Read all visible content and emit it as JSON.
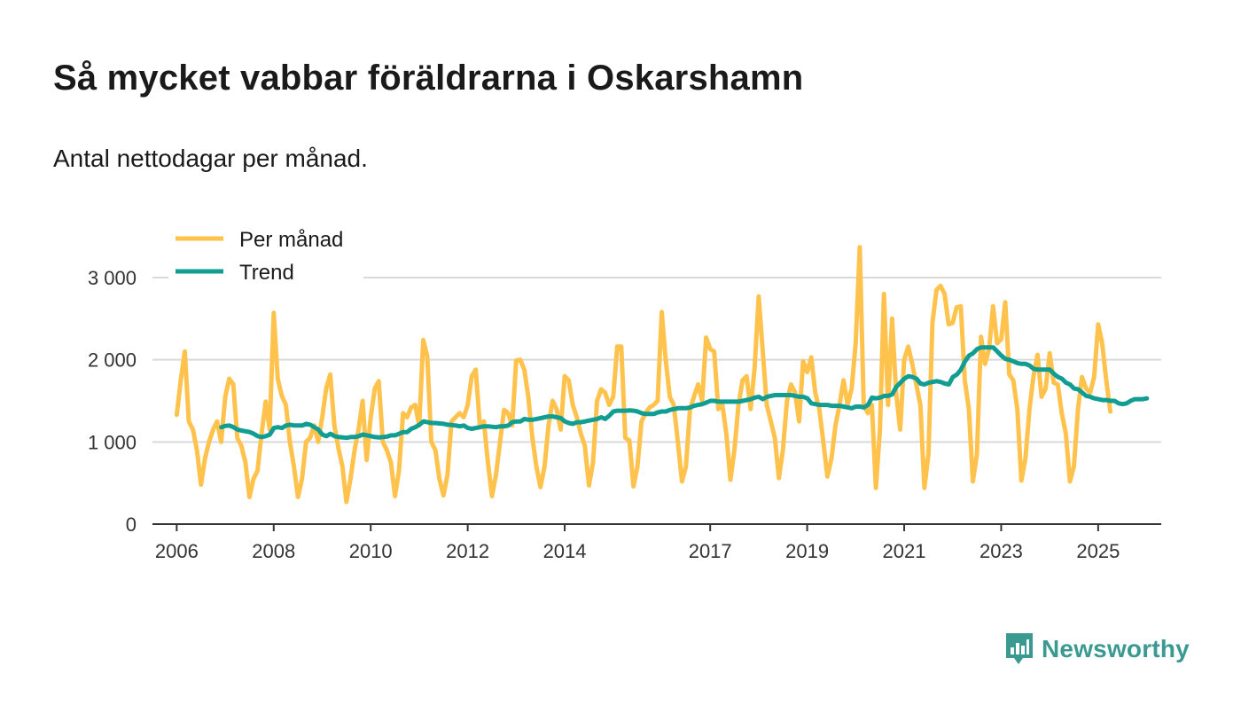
{
  "header": {
    "title": "Så mycket vabbar föräldrarna i Oskarshamn",
    "subtitle": "Antal nettodagar per månad."
  },
  "brand": {
    "name": "Newsworthy",
    "color": "#3a9a92",
    "icon": "newsworthy-logo-icon"
  },
  "colors": {
    "monthly": "#ffc34d",
    "trend": "#119d91",
    "grid": "#d9d9d9",
    "axis": "#333333"
  },
  "chart_data": {
    "type": "line",
    "title": "Så mycket vabbar föräldrarna i Oskarshamn",
    "subtitle": "Antal nettodagar per månad.",
    "xlabel": "",
    "ylabel": "",
    "xlim": [
      2005.5,
      2026.3
    ],
    "ylim": [
      0,
      3000
    ],
    "x_ticks": [
      {
        "value": 2006,
        "label": "2006"
      },
      {
        "value": 2008,
        "label": "2008"
      },
      {
        "value": 2010,
        "label": "2010"
      },
      {
        "value": 2012,
        "label": "2012"
      },
      {
        "value": 2014,
        "label": "2014"
      },
      {
        "value": 2017,
        "label": "2017"
      },
      {
        "value": 2019,
        "label": "2019"
      },
      {
        "value": 2021,
        "label": "2021"
      },
      {
        "value": 2023,
        "label": "2023"
      },
      {
        "value": 2025,
        "label": "2025"
      }
    ],
    "y_ticks": [
      {
        "value": 0,
        "label": "0"
      },
      {
        "value": 1000,
        "label": "1 000"
      },
      {
        "value": 2000,
        "label": "2 000"
      },
      {
        "value": 3000,
        "label": "3 000"
      }
    ],
    "grid": true,
    "legend_position": "top-left",
    "series": [
      {
        "name": "Per månad",
        "start": 2006.0,
        "step": 0.0833333,
        "values": [
          1330,
          1750,
          2100,
          1250,
          1150,
          900,
          480,
          800,
          1000,
          1150,
          1250,
          1000,
          1550,
          1770,
          1700,
          1050,
          950,
          750,
          330,
          550,
          650,
          1100,
          1490,
          1150,
          2570,
          1770,
          1560,
          1450,
          1000,
          700,
          330,
          550,
          1000,
          1050,
          1200,
          1000,
          1300,
          1650,
          1820,
          1200,
          930,
          700,
          270,
          550,
          900,
          1150,
          1500,
          780,
          1300,
          1650,
          1740,
          1000,
          900,
          750,
          340,
          650,
          1350,
          1300,
          1420,
          1450,
          1200,
          2240,
          2040,
          1000,
          900,
          550,
          350,
          600,
          1250,
          1300,
          1350,
          1300,
          1450,
          1800,
          1880,
          1200,
          1250,
          750,
          340,
          600,
          1000,
          1390,
          1350,
          1200,
          1990,
          2000,
          1880,
          1550,
          1050,
          700,
          450,
          700,
          1200,
          1500,
          1400,
          1150,
          1800,
          1750,
          1450,
          1300,
          1100,
          950,
          470,
          750,
          1500,
          1640,
          1600,
          1450,
          1550,
          2160,
          2160,
          1050,
          1020,
          460,
          700,
          1250,
          1350,
          1420,
          1450,
          1500,
          2580,
          2000,
          1550,
          1450,
          1000,
          520,
          700,
          1400,
          1550,
          1700,
          1500,
          2270,
          2130,
          2100,
          1400,
          1450,
          1100,
          540,
          900,
          1450,
          1750,
          1800,
          1400,
          1900,
          2770,
          2100,
          1450,
          1250,
          1050,
          560,
          900,
          1500,
          1700,
          1600,
          1250,
          1980,
          1850,
          2030,
          1600,
          1400,
          1000,
          580,
          800,
          1200,
          1450,
          1750,
          1450,
          1650,
          2200,
          3370,
          1450,
          1350,
          1450,
          440,
          1150,
          2800,
          1450,
          2500,
          1600,
          1150,
          2000,
          2160,
          1950,
          1700,
          1450,
          440,
          850,
          2450,
          2850,
          2900,
          2800,
          2430,
          2450,
          2640,
          2650,
          1750,
          1400,
          520,
          850,
          2280,
          1950,
          2130,
          2650,
          2200,
          2250,
          2700,
          1820,
          1750,
          1400,
          530,
          800,
          1400,
          1800,
          2060,
          1550,
          1650,
          2080,
          1720,
          1700,
          1350,
          1100,
          520,
          700,
          1400,
          1790,
          1650,
          1600,
          1790,
          2430,
          2200,
          1750,
          1370
        ]
      },
      {
        "name": "Trend",
        "start": 2006.92,
        "step": 0.0833333,
        "values": [
          1180,
          1195,
          1200,
          1180,
          1150,
          1140,
          1130,
          1120,
          1100,
          1070,
          1060,
          1070,
          1090,
          1170,
          1180,
          1170,
          1200,
          1210,
          1200,
          1200,
          1200,
          1220,
          1210,
          1180,
          1150,
          1090,
          1070,
          1100,
          1070,
          1060,
          1055,
          1050,
          1060,
          1060,
          1070,
          1090,
          1080,
          1070,
          1060,
          1055,
          1060,
          1065,
          1080,
          1080,
          1100,
          1120,
          1120,
          1160,
          1180,
          1210,
          1250,
          1240,
          1230,
          1230,
          1225,
          1220,
          1210,
          1205,
          1200,
          1190,
          1200,
          1170,
          1160,
          1170,
          1180,
          1190,
          1190,
          1185,
          1180,
          1190,
          1190,
          1200,
          1240,
          1250,
          1250,
          1280,
          1270,
          1270,
          1280,
          1290,
          1300,
          1310,
          1310,
          1300,
          1290,
          1250,
          1230,
          1220,
          1240,
          1240,
          1250,
          1260,
          1270,
          1280,
          1300,
          1280,
          1320,
          1370,
          1380,
          1380,
          1380,
          1385,
          1380,
          1370,
          1350,
          1340,
          1340,
          1340,
          1360,
          1370,
          1370,
          1390,
          1400,
          1410,
          1410,
          1410,
          1420,
          1440,
          1450,
          1460,
          1480,
          1500,
          1500,
          1490,
          1490,
          1490,
          1490,
          1490,
          1490,
          1500,
          1510,
          1520,
          1540,
          1550,
          1520,
          1550,
          1560,
          1570,
          1570,
          1570,
          1570,
          1570,
          1560,
          1550,
          1550,
          1530,
          1470,
          1460,
          1450,
          1450,
          1450,
          1440,
          1440,
          1440,
          1430,
          1420,
          1410,
          1430,
          1430,
          1420,
          1450,
          1540,
          1530,
          1540,
          1560,
          1560,
          1580,
          1670,
          1720,
          1770,
          1800,
          1790,
          1770,
          1710,
          1700,
          1720,
          1730,
          1740,
          1730,
          1710,
          1700,
          1790,
          1820,
          1880,
          1980,
          2050,
          2080,
          2130,
          2150,
          2150,
          2150,
          2150,
          2100,
          2050,
          2010,
          2000,
          1980,
          1960,
          1950,
          1950,
          1930,
          1890,
          1880,
          1880,
          1880,
          1880,
          1830,
          1790,
          1770,
          1720,
          1700,
          1650,
          1640,
          1600,
          1560,
          1550,
          1530,
          1520,
          1510,
          1510,
          1500,
          1500,
          1470,
          1460,
          1470,
          1500,
          1520,
          1520,
          1520,
          1530
        ]
      }
    ]
  }
}
